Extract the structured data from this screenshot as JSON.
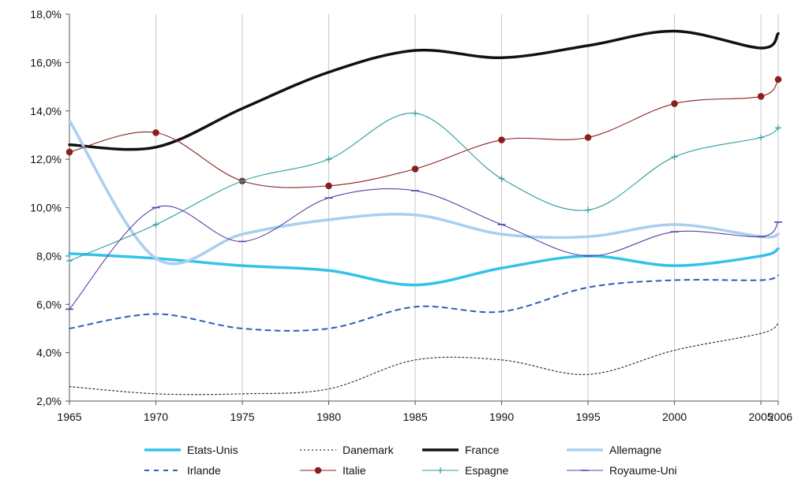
{
  "chart_data": {
    "type": "line",
    "x": [
      1965,
      1970,
      1975,
      1980,
      1985,
      1990,
      1995,
      2000,
      2005,
      2006
    ],
    "xlim": [
      1965,
      2006
    ],
    "ylim": [
      2.0,
      18.0
    ],
    "y_ticks": [
      "2,0%",
      "4,0%",
      "6,0%",
      "8,0%",
      "10,0%",
      "12,0%",
      "14,0%",
      "16,0%",
      "18,0%"
    ],
    "x_ticks": [
      "1965",
      "1970",
      "1975",
      "1980",
      "1985",
      "1990",
      "1995",
      "2000",
      "2005",
      "2006"
    ],
    "grid": "vertical",
    "legend_position": "bottom",
    "series": [
      {
        "name": "Etats-Unis",
        "color": "#33c3e8",
        "style": "thick",
        "values": [
          8.1,
          7.9,
          7.6,
          7.4,
          6.8,
          7.5,
          8.0,
          7.6,
          8.0,
          8.3
        ]
      },
      {
        "name": "Danemark",
        "color": "#333333",
        "style": "dotted",
        "values": [
          2.6,
          2.3,
          2.3,
          2.5,
          3.7,
          3.7,
          3.1,
          4.1,
          4.8,
          5.2
        ]
      },
      {
        "name": "France",
        "color": "#111111",
        "style": "thick",
        "values": [
          12.6,
          12.5,
          14.1,
          15.6,
          16.5,
          16.2,
          16.7,
          17.3,
          16.6,
          17.2
        ]
      },
      {
        "name": "Allemagne",
        "color": "#a9cff0",
        "style": "thick",
        "values": [
          13.6,
          7.9,
          8.9,
          9.5,
          9.7,
          8.9,
          8.8,
          9.3,
          8.8,
          8.9
        ]
      },
      {
        "name": "Irlande",
        "color": "#2e5fb3",
        "style": "dashed",
        "values": [
          5.0,
          5.6,
          5.0,
          5.0,
          5.9,
          5.7,
          6.7,
          7.0,
          7.0,
          7.2
        ]
      },
      {
        "name": "Italie",
        "color": "#8a1f1f",
        "style": "marker-dot",
        "values": [
          12.3,
          13.1,
          11.1,
          10.9,
          11.6,
          12.8,
          12.9,
          14.3,
          14.6,
          15.3
        ]
      },
      {
        "name": "Espagne",
        "color": "#2e9c9c",
        "style": "marker-plus",
        "values": [
          7.8,
          9.3,
          11.1,
          12.0,
          13.9,
          11.2,
          9.9,
          12.1,
          12.9,
          13.3
        ]
      },
      {
        "name": "Royaume-Uni",
        "color": "#5a3fa6",
        "style": "marker-line",
        "values": [
          5.8,
          10.0,
          8.6,
          10.4,
          10.7,
          9.3,
          8.0,
          9.0,
          8.8,
          9.4
        ]
      }
    ]
  }
}
